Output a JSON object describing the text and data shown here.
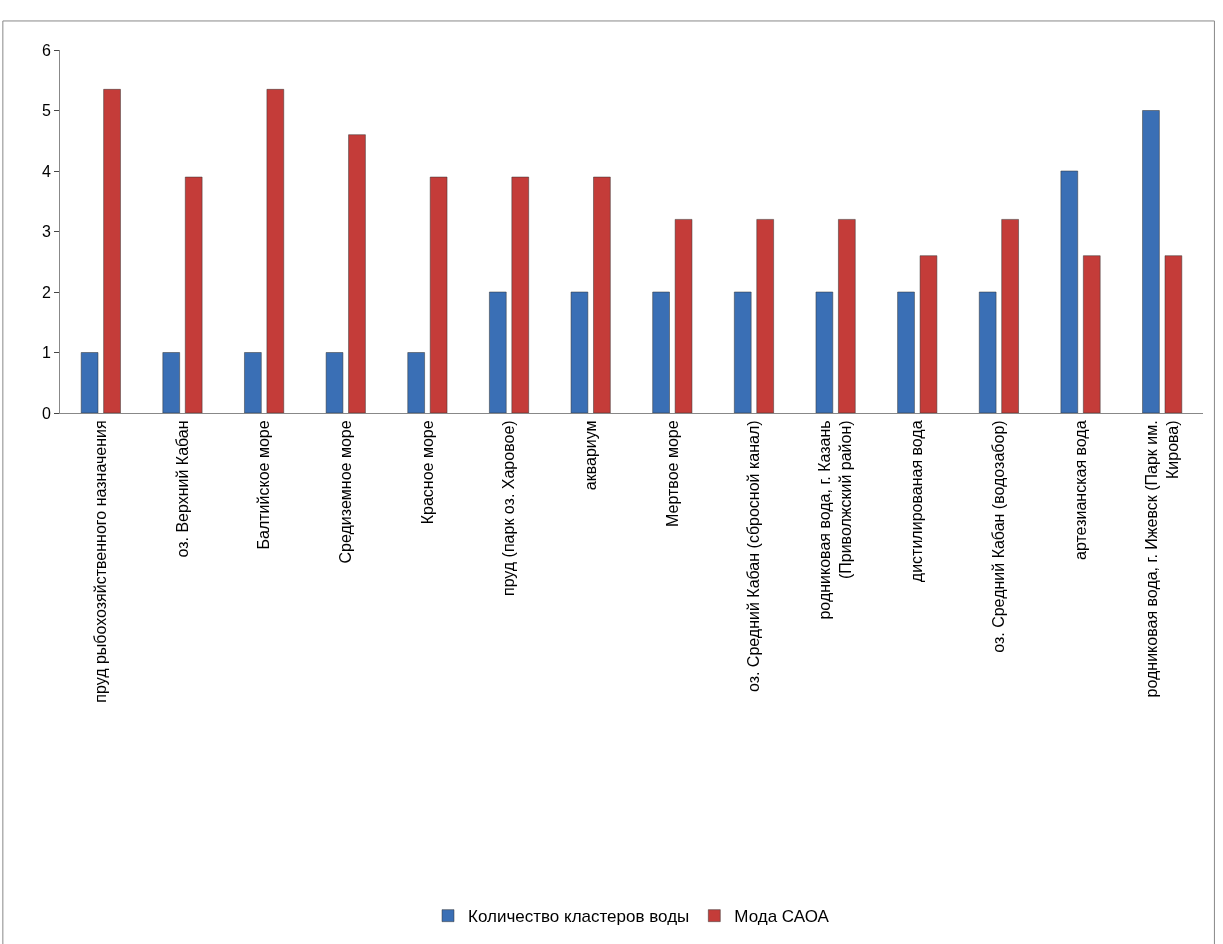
{
  "chart_data": {
    "type": "bar",
    "categories": [
      "пруд рыбохозяйственного назначения",
      "оз. Верхний Кабан",
      "Балтийское море",
      "Средиземное море",
      "Красное море",
      "пруд (парк оз. Харовое)",
      "аквариум",
      "Мертвое море",
      "оз. Средний Кабан (сбросной канал)",
      "родниковая вода, г. Казань (Приволжский район)",
      "дистилированая вода",
      "оз. Средний Кабан (водозабор)",
      "артезианская вода",
      "родниковая вода, г. Ижевск (Парк им. Кирова)"
    ],
    "series": [
      {
        "name": "Количество кластеров воды",
        "color": "#3a6fb5",
        "values": [
          1,
          1,
          1,
          1,
          1,
          2,
          2,
          2,
          2,
          2,
          2,
          2,
          4,
          5
        ]
      },
      {
        "name": "Мода САОА",
        "color": "#c43c39",
        "values": [
          5.35,
          3.9,
          5.35,
          4.6,
          3.9,
          3.9,
          3.9,
          3.2,
          3.2,
          3.2,
          2.6,
          3.2,
          2.6,
          2.6
        ]
      }
    ],
    "ylim": [
      0,
      6
    ],
    "yticks": [
      0,
      1,
      2,
      3,
      4,
      5,
      6
    ],
    "legend": "bottom"
  }
}
